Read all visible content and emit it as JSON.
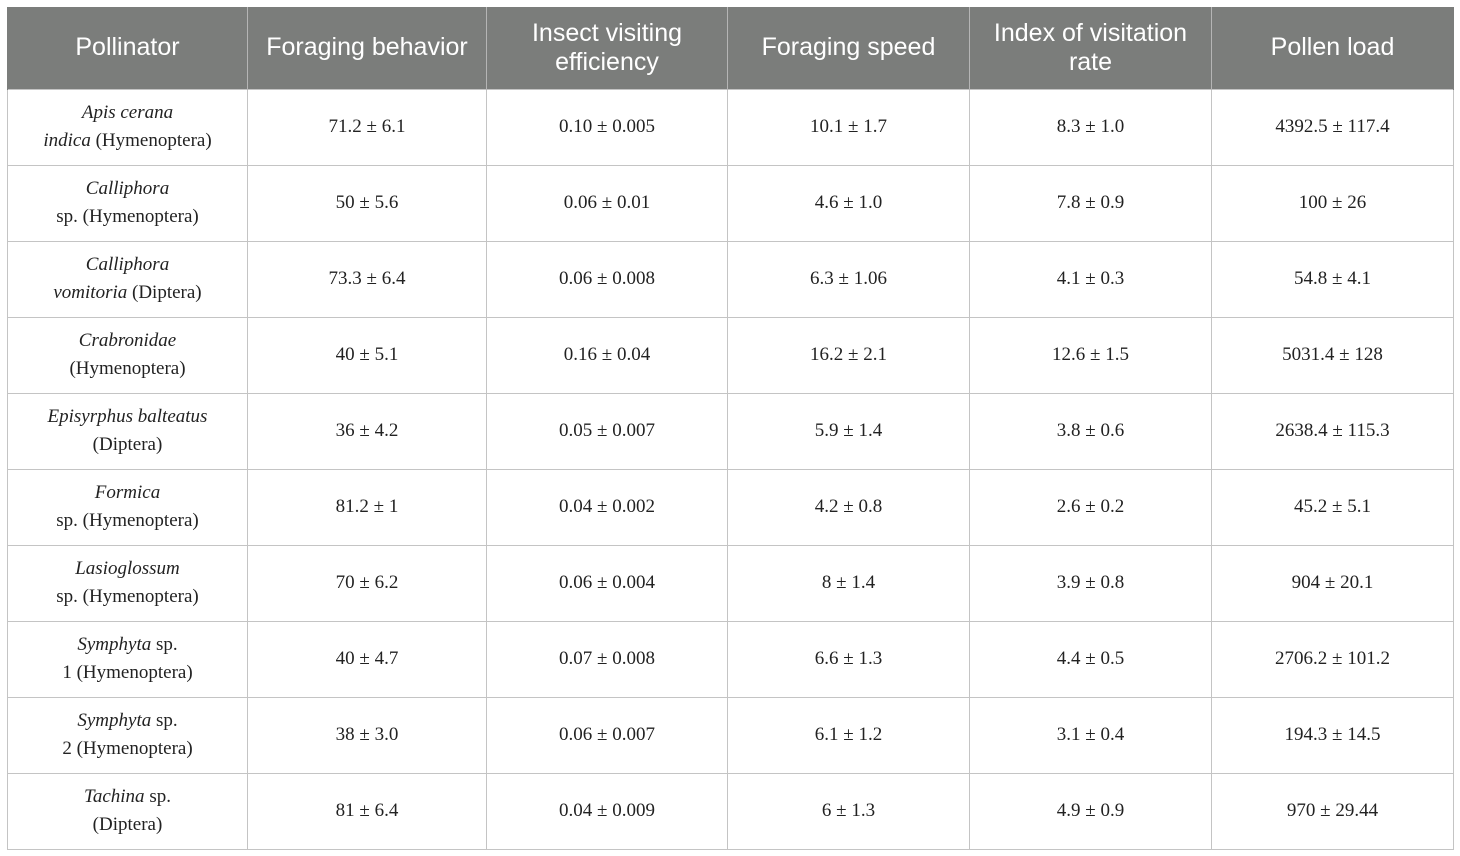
{
  "table": {
    "headers": [
      "Pollinator",
      "Foraging behavior",
      "Insect visiting efficiency",
      "Foraging speed",
      "Index of visitation rate",
      "Pollen load"
    ],
    "rows": [
      {
        "line1_italic": "Apis cerana",
        "line1_plain": "",
        "line2_italic": "indica",
        "line2_plain": " (Hymenoptera)",
        "values": [
          "71.2 ± 6.1",
          "0.10 ± 0.005",
          "10.1 ± 1.7",
          "8.3 ± 1.0",
          "4392.5 ± 117.4"
        ]
      },
      {
        "line1_italic": "Calliphora",
        "line1_plain": "",
        "line2_italic": "",
        "line2_plain": "sp. (Hymenoptera)",
        "values": [
          "50 ± 5.6",
          "0.06 ± 0.01",
          "4.6 ± 1.0",
          "7.8 ± 0.9",
          "100 ± 26"
        ]
      },
      {
        "line1_italic": "Calliphora",
        "line1_plain": "",
        "line2_italic": "vomitoria",
        "line2_plain": " (Diptera)",
        "values": [
          "73.3 ± 6.4",
          "0.06 ± 0.008",
          "6.3 ± 1.06",
          "4.1 ± 0.3",
          "54.8 ± 4.1"
        ]
      },
      {
        "line1_italic": "Crabronidae",
        "line1_plain": "",
        "line2_italic": "",
        "line2_plain": "(Hymenoptera)",
        "values": [
          "40 ± 5.1",
          "0.16 ± 0.04",
          "16.2 ± 2.1",
          "12.6 ± 1.5",
          "5031.4 ± 128"
        ]
      },
      {
        "line1_italic": "Episyrphus balteatus",
        "line1_plain": "",
        "line2_italic": "",
        "line2_plain": "(Diptera)",
        "values": [
          "36 ± 4.2",
          "0.05 ± 0.007",
          "5.9 ± 1.4",
          "3.8 ± 0.6",
          "2638.4 ± 115.3"
        ]
      },
      {
        "line1_italic": "Formica",
        "line1_plain": "",
        "line2_italic": "",
        "line2_plain": "sp. (Hymenoptera)",
        "values": [
          "81.2 ± 1",
          "0.04 ± 0.002",
          "4.2 ± 0.8",
          "2.6 ± 0.2",
          "45.2 ± 5.1"
        ]
      },
      {
        "line1_italic": "Lasioglossum",
        "line1_plain": "",
        "line2_italic": "",
        "line2_plain": "sp. (Hymenoptera)",
        "values": [
          "70 ± 6.2",
          "0.06 ± 0.004",
          "8 ± 1.4",
          "3.9 ± 0.8",
          "904 ± 20.1"
        ]
      },
      {
        "line1_italic": "Symphyta",
        "line1_plain": " sp.",
        "line2_italic": "",
        "line2_plain": "1 (Hymenoptera)",
        "values": [
          "40 ± 4.7",
          "0.07 ± 0.008",
          "6.6 ± 1.3",
          "4.4 ± 0.5",
          "2706.2 ± 101.2"
        ]
      },
      {
        "line1_italic": "Symphyta",
        "line1_plain": " sp.",
        "line2_italic": "",
        "line2_plain": "2 (Hymenoptera)",
        "values": [
          "38 ± 3.0",
          "0.06 ± 0.007",
          "6.1 ± 1.2",
          "3.1 ± 0.4",
          "194.3 ± 14.5"
        ]
      },
      {
        "line1_italic": "Tachina",
        "line1_plain": " sp.",
        "line2_italic": "",
        "line2_plain": "(Diptera)",
        "values": [
          "81 ± 6.4",
          "0.04 ± 0.009",
          "6 ± 1.3",
          "4.9 ± 0.9",
          "970 ± 29.44"
        ]
      }
    ]
  },
  "colors": {
    "header_background": "#7b7d7b",
    "header_text": "#ffffff",
    "grid_line": "#c4c4c4",
    "body_text": "#222222"
  }
}
